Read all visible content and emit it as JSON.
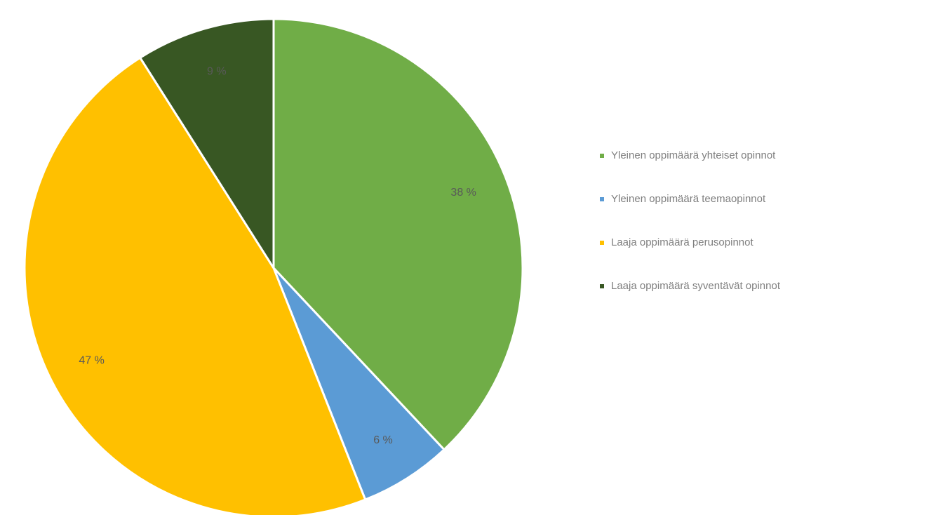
{
  "chart_data": {
    "type": "pie",
    "start_angle_deg": 0,
    "direction": "clockwise",
    "slices": [
      {
        "label": "Yleinen oppimäärä yhteiset opinnot",
        "value": 38,
        "display": "38 %",
        "color": "#70AD47"
      },
      {
        "label": "Yleinen oppimäärä teemaopinnot",
        "value": 6,
        "display": "6 %",
        "color": "#5B9BD5"
      },
      {
        "label": "Laaja oppimäärä perusopinnot",
        "value": 47,
        "display": "47 %",
        "color": "#FFC000"
      },
      {
        "label": "Laaja oppimäärä syventävät opinnot",
        "value": 9,
        "display": "9 %",
        "color": "#385723"
      }
    ],
    "legend_position": "right"
  }
}
